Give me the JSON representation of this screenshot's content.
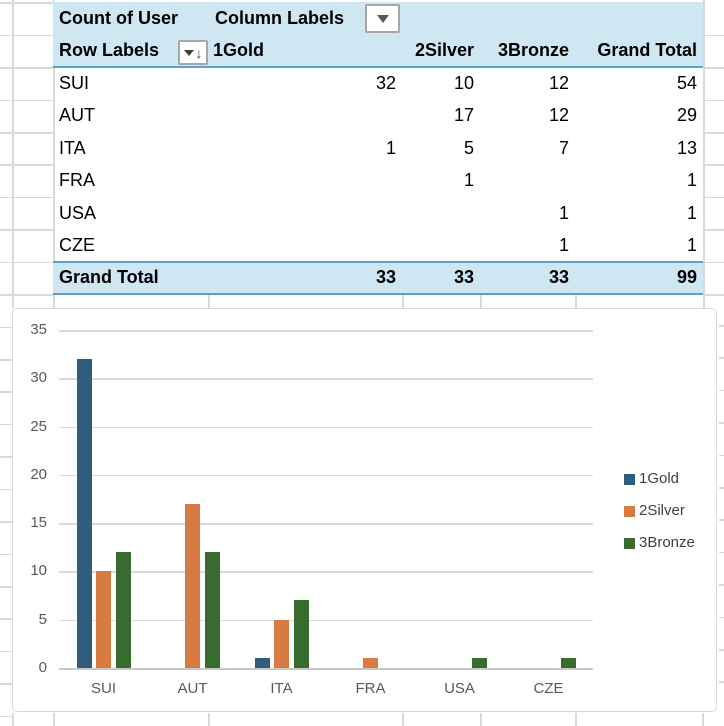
{
  "pivot_table": {
    "value_field_label": "Count of User",
    "column_labels_label": "Column Labels",
    "row_labels_label": "Row Labels",
    "column_headers": [
      "1Gold",
      "2Silver",
      "3Bronze",
      "Grand Total"
    ],
    "rows": [
      {
        "label": "SUI",
        "values": [
          "32",
          "10",
          "12",
          "54"
        ]
      },
      {
        "label": "AUT",
        "values": [
          "",
          "17",
          "12",
          "29"
        ]
      },
      {
        "label": "ITA",
        "values": [
          "1",
          "5",
          "7",
          "13"
        ]
      },
      {
        "label": "FRA",
        "values": [
          "",
          "1",
          "",
          "1"
        ]
      },
      {
        "label": "USA",
        "values": [
          "",
          "",
          "1",
          "1"
        ]
      },
      {
        "label": "CZE",
        "values": [
          "",
          "",
          "1",
          "1"
        ]
      }
    ],
    "grand_total_row": {
      "label": "Grand Total",
      "values": [
        "33",
        "33",
        "33",
        "99"
      ]
    },
    "header_fill_color": "#CFE6F3",
    "accent_line_color": "#57A1CD",
    "icons": {
      "column_labels_dropdown": "dropdown-arrow-icon",
      "row_labels_sort": "sort-filter-icon"
    }
  },
  "chart_data": {
    "type": "bar",
    "title": "",
    "xlabel": "",
    "ylabel": "",
    "categories": [
      "SUI",
      "AUT",
      "ITA",
      "FRA",
      "USA",
      "CZE"
    ],
    "series": [
      {
        "name": "1Gold",
        "color": "#2F5D7B",
        "values": [
          32,
          0,
          1,
          0,
          0,
          0
        ]
      },
      {
        "name": "2Silver",
        "color": "#D87B43",
        "values": [
          10,
          17,
          5,
          1,
          0,
          0
        ]
      },
      {
        "name": "3Bronze",
        "color": "#386C2E",
        "values": [
          12,
          12,
          7,
          0,
          1,
          1
        ]
      }
    ],
    "ylim": [
      0,
      35
    ],
    "yticks": [
      0,
      5,
      10,
      15,
      20,
      25,
      30,
      35
    ],
    "grid": true,
    "legend_position": "right",
    "gridline_color": "#D9D9D9",
    "axis_line_color": "#C9C9C9",
    "axis_text_color": "#595959"
  }
}
